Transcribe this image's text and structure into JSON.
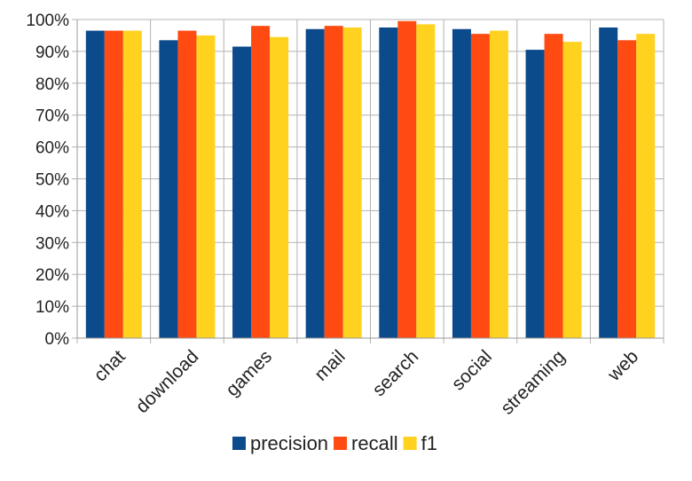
{
  "chart_data": {
    "type": "bar",
    "categories": [
      "chat",
      "download",
      "games",
      "mail",
      "search",
      "social",
      "streaming",
      "web"
    ],
    "series": [
      {
        "name": "precision",
        "color": "#0b4a8b",
        "values": [
          0.965,
          0.935,
          0.915,
          0.97,
          0.975,
          0.97,
          0.905,
          0.975
        ]
      },
      {
        "name": "recall",
        "color": "#ff4a12",
        "values": [
          0.965,
          0.965,
          0.98,
          0.98,
          0.995,
          0.955,
          0.955,
          0.935
        ]
      },
      {
        "name": "f1",
        "color": "#ffd21f",
        "values": [
          0.965,
          0.95,
          0.945,
          0.975,
          0.985,
          0.965,
          0.93,
          0.955
        ]
      }
    ],
    "ylim": [
      0,
      1
    ],
    "yticks": [
      "0%",
      "10%",
      "20%",
      "30%",
      "40%",
      "50%",
      "60%",
      "70%",
      "80%",
      "90%",
      "100%"
    ],
    "grid": true,
    "legend_position": "bottom",
    "title": "",
    "xlabel": "",
    "ylabel": ""
  }
}
